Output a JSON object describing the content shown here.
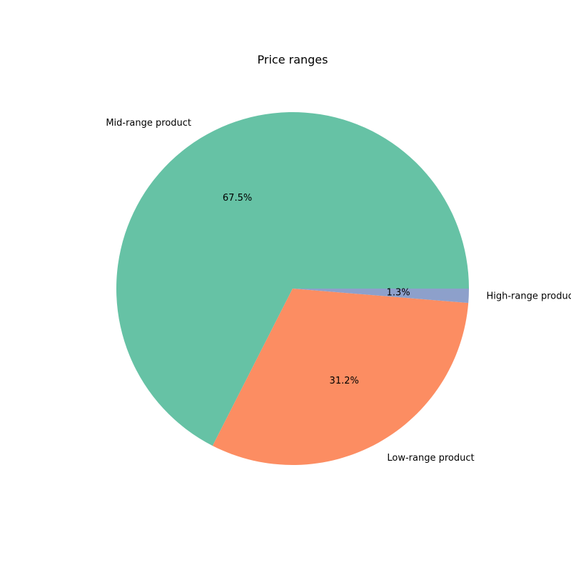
{
  "chart_data": {
    "type": "pie",
    "title": "Price ranges",
    "start_angle_deg": 0,
    "direction": "counterclockwise",
    "slices": [
      {
        "label": "Mid-range product",
        "value": 67.5,
        "pct_label": "67.5%",
        "color": "#66c2a5"
      },
      {
        "label": "Low-range product",
        "value": 31.2,
        "pct_label": "31.2%",
        "color": "#fc8d62"
      },
      {
        "label": "High-range product",
        "value": 1.3,
        "pct_label": "1.3%",
        "color": "#8da0cb"
      }
    ]
  }
}
